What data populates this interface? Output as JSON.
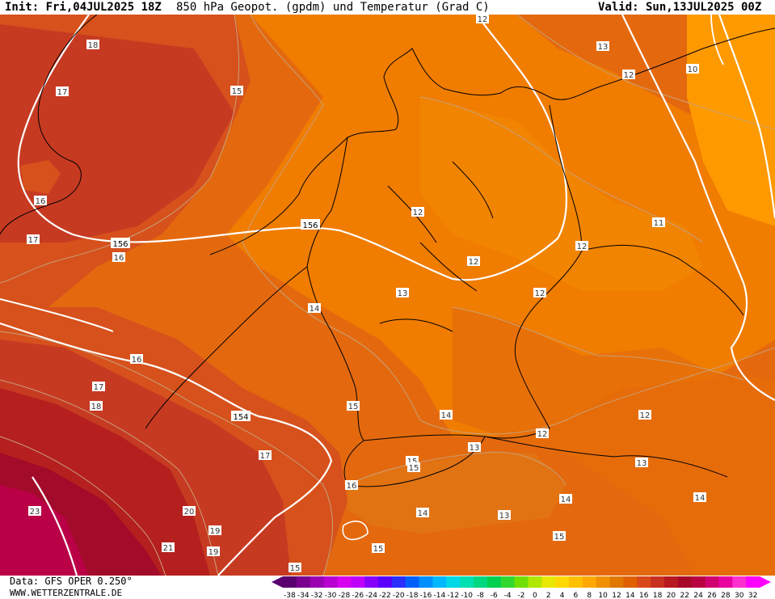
{
  "header": {
    "init": "Init: Fri,04JUL2025 18Z",
    "title": "850 hPa Geopot. (gpdm) und Temperatur (Grad C)",
    "valid": "Valid: Sun,13JUL2025 00Z"
  },
  "footer": {
    "data_source": "Data: GFS OPER 0.250°",
    "website": "WWW.WETTERZENTRALE.DE"
  },
  "colorbar": {
    "ticks": [
      "-38",
      "-34",
      "-32",
      "-30",
      "-28",
      "-26",
      "-24",
      "-22",
      "-20",
      "-18",
      "-16",
      "-14",
      "-12",
      "-10",
      "-8",
      "-6",
      "-4",
      "-2",
      "0",
      "2",
      "4",
      "6",
      "8",
      "10",
      "12",
      "14",
      "16",
      "18",
      "20",
      "22",
      "24",
      "26",
      "28",
      "30",
      "32"
    ],
    "colors": [
      "#5a006e",
      "#7a0090",
      "#9a00b0",
      "#b800d0",
      "#d800f0",
      "#c000ff",
      "#8800ff",
      "#5a00ff",
      "#2a30ff",
      "#0060ff",
      "#0090ff",
      "#00b8ff",
      "#00d8e8",
      "#00e0b0",
      "#00d880",
      "#00d050",
      "#30d830",
      "#70e000",
      "#b0e800",
      "#e8e800",
      "#ffd800",
      "#ffc000",
      "#ffa800",
      "#f09000",
      "#e07800",
      "#e06000",
      "#d84818",
      "#c83020",
      "#b81820",
      "#a80828",
      "#b80040",
      "#d00070",
      "#e800a0",
      "#ff30d0",
      "#ff00ff"
    ]
  },
  "map_colors": {
    "t10": "#ff9900",
    "t12": "#f07c00",
    "t14": "#e4690e",
    "t16": "#d6511c",
    "t18": "#c73a22",
    "t20": "#b5201e",
    "t22": "#a30b2a",
    "t24": "#ba0046",
    "geopotential_contour": "#ffffff",
    "temperature_contour": "#c8a078",
    "borders": "#000000"
  },
  "geopotential_labels": [
    "156",
    "156",
    "154"
  ],
  "temperature_labels": [
    "18",
    "17",
    "15",
    "16",
    "17",
    "16",
    "12",
    "13",
    "12",
    "10",
    "12",
    "11",
    "12",
    "12",
    "13",
    "12",
    "14",
    "16",
    "17",
    "18",
    "15",
    "14",
    "12",
    "13",
    "15",
    "15",
    "12",
    "13",
    "14",
    "16",
    "14",
    "17",
    "14",
    "15",
    "13",
    "20",
    "19",
    "21",
    "19",
    "15",
    "15",
    "23"
  ]
}
